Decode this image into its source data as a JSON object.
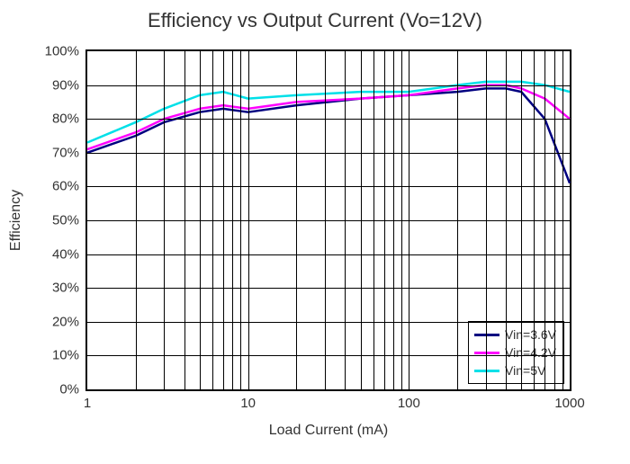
{
  "chart": {
    "type": "line",
    "title": "Efficiency vs Output Current (Vo=12V)",
    "title_fontsize": 22,
    "background_color": "#ffffff",
    "axis_color": "#000000",
    "grid_color": "#000000",
    "x_axis": {
      "label": "Load Current (mA)",
      "scale": "log",
      "min": 1,
      "max": 1000,
      "major_ticks": [
        1,
        10,
        100,
        1000
      ],
      "major_tick_labels": [
        "1",
        "10",
        "100",
        "1000"
      ],
      "minor_ticks": [
        2,
        3,
        4,
        5,
        6,
        7,
        8,
        9,
        20,
        30,
        40,
        50,
        60,
        70,
        80,
        90,
        200,
        300,
        400,
        500,
        600,
        700,
        800,
        900
      ]
    },
    "y_axis": {
      "label": "Efficiency",
      "scale": "linear",
      "min": 0,
      "max": 100,
      "ticks": [
        0,
        10,
        20,
        30,
        40,
        50,
        60,
        70,
        80,
        90,
        100
      ],
      "tick_labels": [
        "0%",
        "10%",
        "20%",
        "30%",
        "40%",
        "50%",
        "60%",
        "70%",
        "80%",
        "90%",
        "100%"
      ]
    },
    "line_width": 2.5,
    "series": [
      {
        "name": "Vin=3.6V",
        "color": "#000080",
        "x": [
          1,
          2,
          3,
          5,
          7,
          10,
          20,
          50,
          100,
          200,
          300,
          400,
          500,
          700,
          1000
        ],
        "y": [
          70,
          75,
          79,
          82,
          83,
          82,
          84,
          86,
          87,
          88,
          89,
          89,
          88,
          80,
          61
        ]
      },
      {
        "name": "Vin=4.2V",
        "color": "#ff00ff",
        "x": [
          1,
          2,
          3,
          5,
          7,
          10,
          20,
          50,
          100,
          200,
          300,
          400,
          500,
          700,
          1000
        ],
        "y": [
          71,
          76,
          80,
          83,
          84,
          83,
          85,
          86,
          87,
          89,
          90,
          90,
          89,
          86,
          80
        ]
      },
      {
        "name": "Vin=5V",
        "color": "#00e0e8",
        "x": [
          1,
          2,
          3,
          5,
          7,
          10,
          20,
          50,
          100,
          200,
          300,
          400,
          500,
          700,
          1000
        ],
        "y": [
          73,
          79,
          83,
          87,
          88,
          86,
          87,
          88,
          88,
          90,
          91,
          91,
          91,
          90,
          88
        ]
      }
    ],
    "legend": {
      "position": "bottom-right",
      "border_color": "#000000",
      "background_color": "#ffffff",
      "fontsize": 14
    }
  }
}
